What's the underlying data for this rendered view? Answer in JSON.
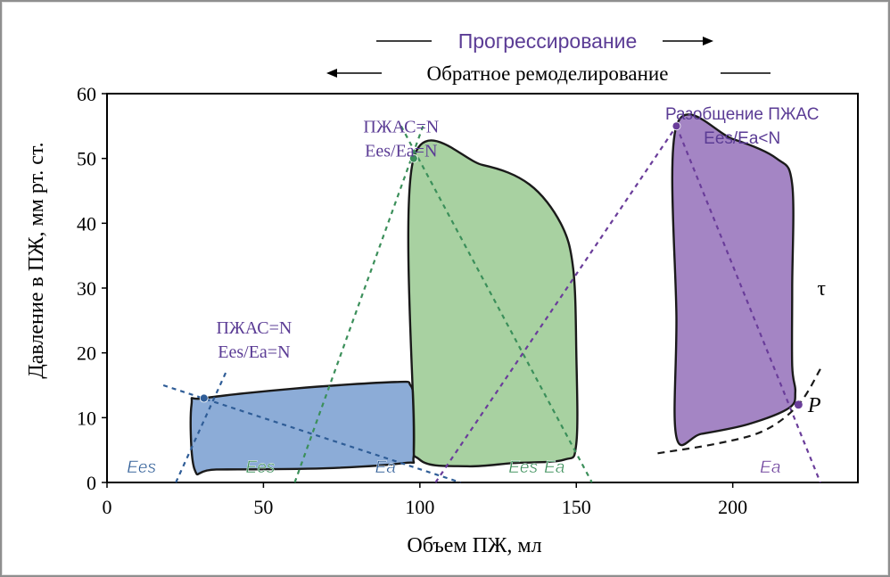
{
  "colors": {
    "blue_fill": "#6b95cc",
    "blue_stroke": "#2f5d97",
    "green_fill": "#8fc487",
    "green_stroke": "#3b8f5a",
    "purple_fill": "#8a63b3",
    "purple_stroke": "#6a3d9a",
    "outline": "#1a1a1a",
    "label_text": "#5b3c95",
    "axis": "#000000"
  },
  "header": {
    "progression_label": "Прогрессирование",
    "reverse_label": "Обратное ремоделирование"
  },
  "chart_data": {
    "type": "scatter",
    "title": "",
    "xlabel": "Объем ПЖ, мл",
    "ylabel": "Давление в ПЖ, мм рт. ст.",
    "xlim": [
      0,
      240
    ],
    "ylim": [
      0,
      60
    ],
    "xticks": [
      0,
      50,
      100,
      150,
      200
    ],
    "yticks": [
      0,
      10,
      20,
      30,
      40,
      50,
      60
    ],
    "grid": false,
    "loops": [
      {
        "name": "blue",
        "color": "#6b95cc",
        "points": [
          [
            28,
            2
          ],
          [
            27,
            12
          ],
          [
            31,
            13
          ],
          [
            60,
            14.5
          ],
          [
            92,
            15.5
          ],
          [
            97,
            15
          ],
          [
            98,
            12
          ],
          [
            98,
            4
          ],
          [
            95,
            3
          ],
          [
            70,
            2.2
          ],
          [
            35,
            2
          ]
        ],
        "end_systolic": [
          31,
          13
        ],
        "ees_line": [
          [
            22,
            0
          ],
          [
            38,
            17
          ]
        ],
        "ea_line": [
          [
            18,
            15
          ],
          [
            113,
            0
          ]
        ],
        "ees_label": "Ees",
        "ea_label": "Ea",
        "ees_label_at": [
          [
            11,
            1.8
          ]
        ],
        "ea_label_at": [
          [
            89,
            1.8
          ]
        ],
        "annotation": [
          "ПЖАС=N",
          "Ees/Ea=N"
        ],
        "annotation_at": [
          47,
          23
        ]
      },
      {
        "name": "green",
        "color": "#8fc487",
        "points": [
          [
            98,
            50
          ],
          [
            120,
            49
          ],
          [
            135,
            46
          ],
          [
            145,
            40
          ],
          [
            149,
            33
          ],
          [
            150,
            20
          ],
          [
            150,
            6
          ],
          [
            146,
            3.5
          ],
          [
            130,
            3
          ],
          [
            115,
            2.5
          ],
          [
            100,
            3.5
          ],
          [
            98,
            10
          ]
        ],
        "end_systolic": [
          98,
          50
        ],
        "ees_line": [
          [
            60,
            0
          ],
          [
            101,
            55
          ]
        ],
        "ea_line": [
          [
            94,
            55
          ],
          [
            155,
            0
          ]
        ],
        "ees_label": "Ees",
        "ea_label": "Ea",
        "ees_label_at": [
          [
            49,
            1.8
          ],
          [
            133,
            1.8
          ]
        ],
        "ea_label_at": [
          [
            143,
            1.8
          ]
        ],
        "annotation": [
          "ПЖАС=N",
          "Ees/Ea=N"
        ],
        "annotation_at": [
          94,
          54
        ]
      },
      {
        "name": "purple",
        "color": "#8a63b3",
        "points": [
          [
            182,
            55
          ],
          [
            200,
            53
          ],
          [
            214,
            50
          ],
          [
            219,
            46
          ],
          [
            219,
            30
          ],
          [
            219,
            18
          ],
          [
            220,
            14
          ],
          [
            218,
            11.5
          ],
          [
            205,
            9
          ],
          [
            190,
            7.5
          ],
          [
            182,
            7
          ],
          [
            182,
            25
          ]
        ],
        "end_systolic": [
          182,
          55
        ],
        "ees_line": [
          [
            105,
            0
          ],
          [
            182,
            55
          ]
        ],
        "ea_line": [
          [
            182,
            55
          ],
          [
            228,
            0
          ]
        ],
        "ees_label": "Ees",
        "ea_label": "Ea",
        "ees_label_at": [],
        "ea_label_at": [
          [
            212,
            1.8
          ]
        ],
        "annotation": [
          "Разобщение ПЖАС",
          "Ees/Ea<N"
        ],
        "annotation_at": [
          203,
          56
        ]
      }
    ],
    "edpvr_curve": {
      "points": [
        [
          176,
          4.5
        ],
        [
          195,
          6
        ],
        [
          210,
          8
        ],
        [
          221,
          12
        ],
        [
          228,
          17.5
        ]
      ],
      "marker": [
        221,
        12
      ],
      "label": "P",
      "label_at": [
        224,
        12
      ]
    },
    "tau_label": "τ",
    "tau_label_at": [
      227,
      30
    ]
  }
}
